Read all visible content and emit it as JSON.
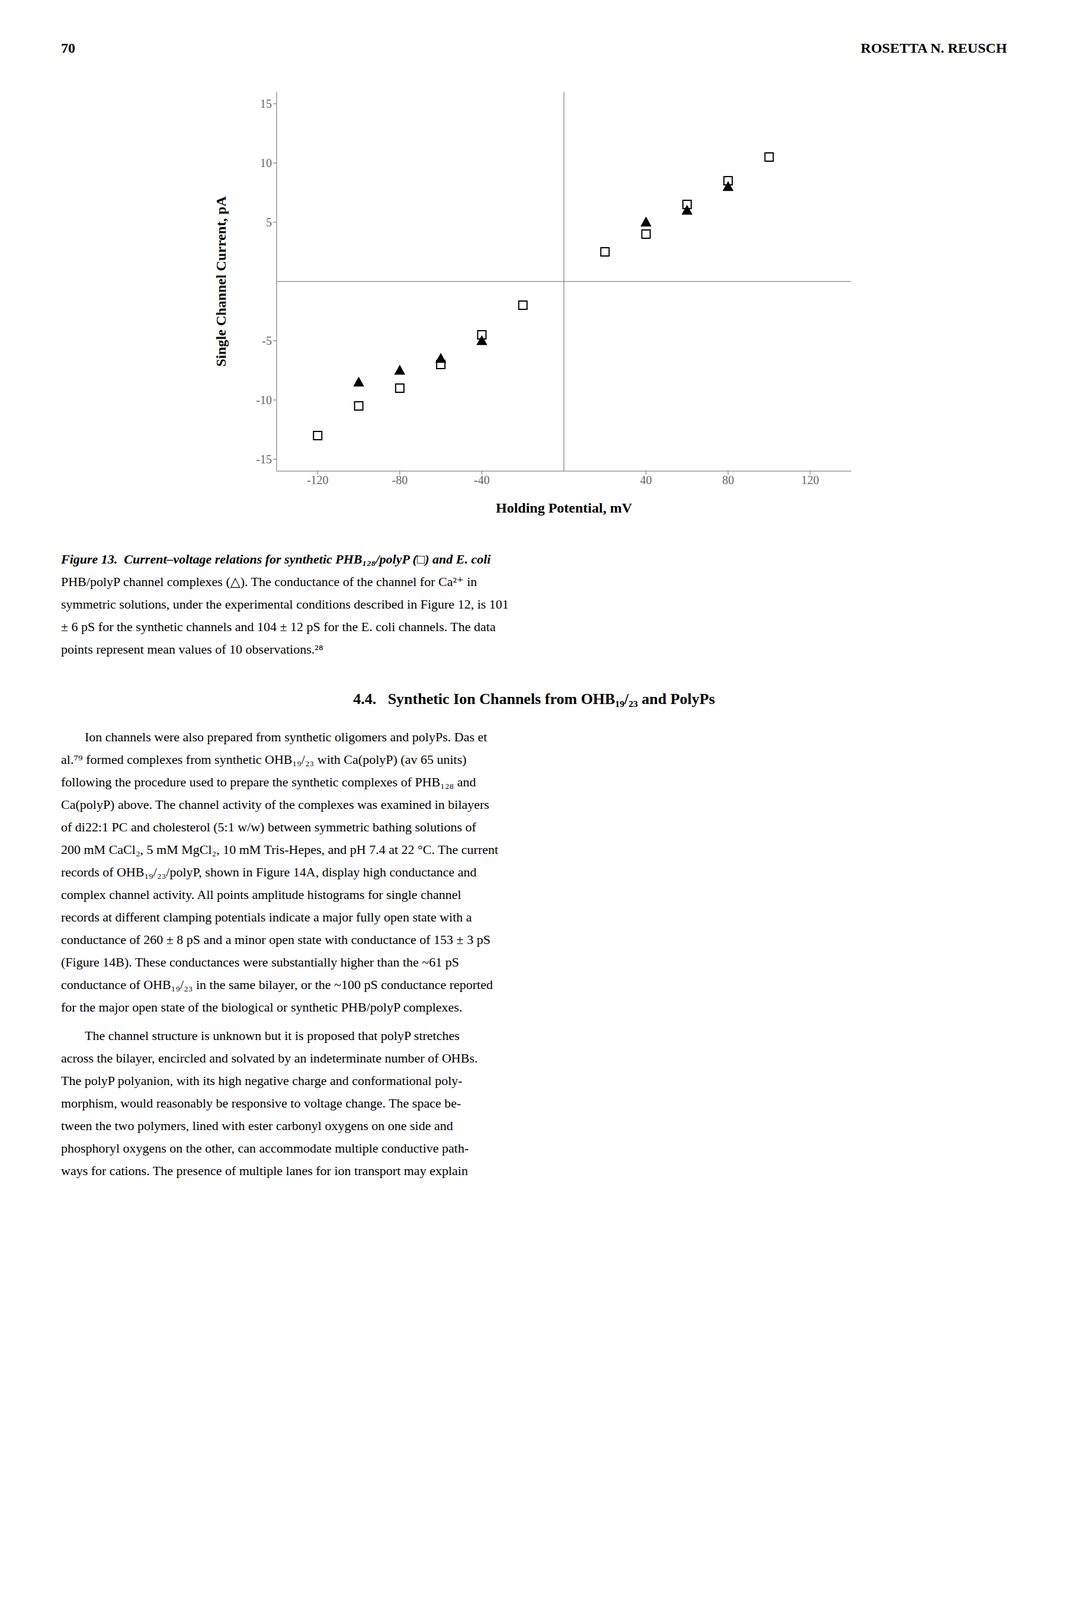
{
  "chart_data": {
    "type": "scatter",
    "xlabel": "Holding Potential, mV",
    "ylabel": "Single Channel Current, pA",
    "xlim": [
      -140,
      140
    ],
    "ylim": [
      -16,
      16
    ],
    "xticks": [
      -120,
      -80,
      -40,
      40,
      80,
      120
    ],
    "yticks": [
      -15,
      -10,
      -5,
      5,
      10,
      15
    ],
    "grid": false,
    "series": [
      {
        "color": "#000000",
        "marker": "open_square",
        "x": [
          -120,
          -100,
          -80,
          -60,
          -40,
          -20,
          20,
          40,
          60,
          80,
          100
        ],
        "values": [
          -13.0,
          -10.5,
          -9.0,
          -7.0,
          -4.5,
          -2.0,
          2.5,
          4.0,
          6.5,
          8.5,
          10.5
        ]
      },
      {
        "color": "#000000",
        "marker": "triangle",
        "x": [
          -100,
          -80,
          -60,
          -40,
          40,
          60,
          80
        ],
        "values": [
          -8.5,
          -7.5,
          -6.5,
          -5.0,
          5.0,
          6.0,
          8.0
        ]
      }
    ],
    "annotations": [
      [
        "70",
        "ROSETTA N. REUSCH"
      ],
      [
        "Figure 13.  Current–voltage relations for synthetic PHB₁₂₈/polyP (□) and E. coli",
        "PHB/polyP channel complexes (△). The conductance of the channel for Ca²⁺ in",
        "symmetric solutions, under the experimental conditions described in Figure 12, is 101",
        "± 6 pS for the synthetic channels and 104 ± 12 pS for the E. coli channels. The data",
        "points represent mean values of 10 observations.²⁸"
      ],
      [
        "4.4.   Synthetic Ion Channels from OHB₁₉/₂₃ and PolyPs"
      ],
      [
        "Ion channels were also prepared from synthetic oligomers and polyPs. Das et",
        "al.⁷⁹ formed complexes from synthetic OHB₁₉/₂₃ with Ca(polyP) (av 65 units)",
        "following the procedure used to prepare the synthetic complexes of PHB₁₂₈ and",
        "Ca(polyP) above. The channel activity of the complexes was examined in bilayers",
        "of di22:1 PC and cholesterol (5:1 w/w) between symmetric bathing solutions of",
        "200 mM CaCl₂, 5 mM MgCl₂, 10 mM Tris-Hepes, and pH 7.4 at 22 °C. The current",
        "records of OHB₁₉/₂₃/polyP, shown in Figure 14A, display high conductance and",
        "complex channel activity. All points amplitude histograms for single channel",
        "records at different clamping potentials indicate a major fully open state with a",
        "conductance of 260 ± 8 pS and a minor open state with conductance of 153 ± 3 pS",
        "(Figure 14B). These conductances were substantially higher than the ~61 pS",
        "conductance of OHB₁₉/₂₃ in the same bilayer, or the ~100 pS conductance reported",
        "for the major open state of the biological or synthetic PHB/polyP complexes."
      ],
      [
        "The channel structure is unknown but it is proposed that polyP stretches",
        "across the bilayer, encircled and solvated by an indeterminate number of OHBs.",
        "The polyP polyanion, with its high negative charge and conformational poly-",
        "morphism, would reasonably be responsive to voltage change. The space be-",
        "tween the two polymers, lined with ester carbonyl oxygens on one side and",
        "phosphoryl oxygens on the other, can accommodate multiple conductive path-",
        "ways for cations. The presence of multiple lanes for ion transport may explain"
      ]
    ]
  }
}
